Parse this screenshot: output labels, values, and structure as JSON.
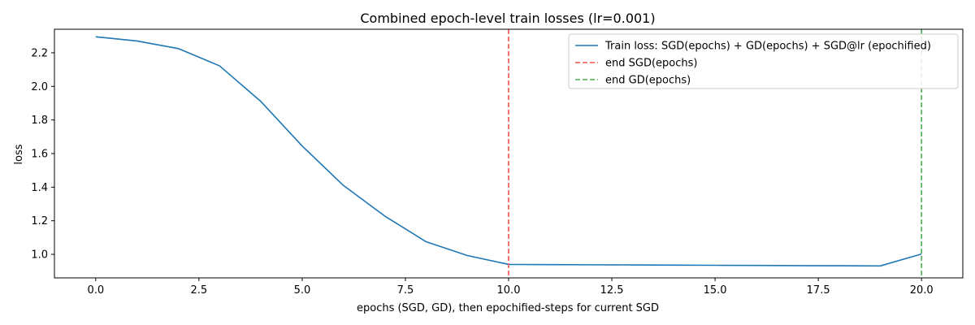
{
  "chart_data": {
    "type": "line",
    "title": "Combined epoch-level train losses (lr=0.001)",
    "xlabel": "epochs (SGD, GD), then epochified-steps for current SGD",
    "ylabel": "loss",
    "xlim": [
      -1.0,
      21.0
    ],
    "ylim": [
      0.86,
      2.34
    ],
    "x_ticks": [
      0.0,
      2.5,
      5.0,
      7.5,
      10.0,
      12.5,
      15.0,
      17.5,
      20.0
    ],
    "x_tick_labels": [
      "0.0",
      "2.5",
      "5.0",
      "7.5",
      "10.0",
      "12.5",
      "15.0",
      "17.5",
      "20.0"
    ],
    "y_ticks": [
      1.0,
      1.2,
      1.4,
      1.6,
      1.8,
      2.0,
      2.2
    ],
    "y_tick_labels": [
      "1.0",
      "1.2",
      "1.4",
      "1.6",
      "1.8",
      "2.0",
      "2.2"
    ],
    "grid": false,
    "legend_position": "top-right",
    "series": [
      {
        "name": "Train loss: SGD(epochs) + GD(epochs) + SGD@lr (epochified)",
        "color": "#1f77b4",
        "style": "solid",
        "x": [
          0,
          1,
          2,
          3,
          4,
          5,
          6,
          7,
          8,
          9,
          10,
          11,
          12,
          13,
          14,
          15,
          16,
          17,
          18,
          19,
          20
        ],
        "values": [
          2.295,
          2.27,
          2.225,
          2.122,
          1.91,
          1.645,
          1.41,
          1.228,
          1.075,
          0.993,
          0.94,
          0.939,
          0.938,
          0.937,
          0.936,
          0.935,
          0.934,
          0.933,
          0.932,
          0.931,
          1.002
        ]
      }
    ],
    "vlines": [
      {
        "name": "end SGD(epochs)",
        "x": 10,
        "color": "#ef5350",
        "style": "dashed"
      },
      {
        "name": "end GD(epochs)",
        "x": 20,
        "color": "#4caf50",
        "style": "dashed"
      }
    ]
  }
}
